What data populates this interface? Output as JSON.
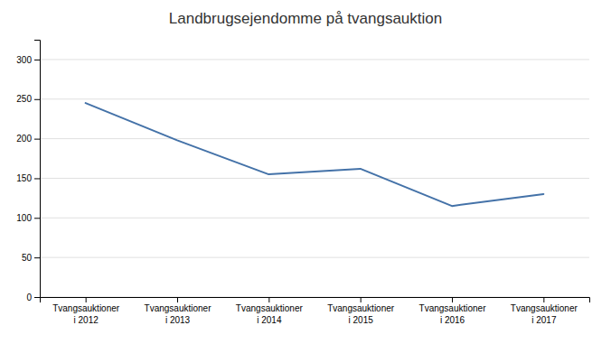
{
  "chart_data": {
    "type": "line",
    "title": "Landbrugsejendomme på tvangsauktion",
    "categories": [
      "Tvangsauktioner\ni 2012",
      "Tvangsauktioner\ni 2013",
      "Tvangsauktioner\ni 2014",
      "Tvangsauktioner\ni 2015",
      "Tvangsauktioner\ni 2016",
      "Tvangsauktioner\ni 2017"
    ],
    "values": [
      245,
      198,
      155,
      162,
      115,
      130
    ],
    "color": "#4472a8",
    "ylim": [
      0,
      325
    ],
    "yticks": [
      0,
      50,
      100,
      150,
      200,
      250,
      300
    ],
    "grid": true
  }
}
